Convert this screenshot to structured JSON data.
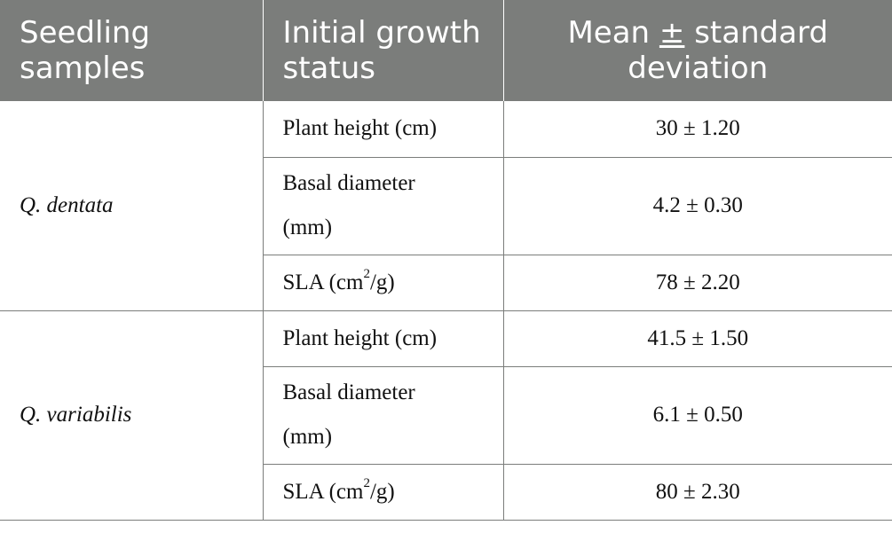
{
  "table": {
    "headers": {
      "col1_line1": "Seedling",
      "col1_line2": "samples",
      "col2_line1": "Initial growth",
      "col2_line2": "status",
      "col3_line1_a": "Mean ",
      "col3_line1_pm": "±",
      "col3_line1_b": " standard",
      "col3_line2": "deviation"
    },
    "groups": [
      {
        "species": "Q. dentata",
        "rows": [
          {
            "param": "Plant height (cm)",
            "value": "30 ± 1.20"
          },
          {
            "param_line1": "Basal diameter",
            "param_line2": "(mm)",
            "value": "4.2 ± 0.30"
          },
          {
            "param_a": "SLA (cm",
            "param_sup": "2",
            "param_b": "/g)",
            "value": "78 ± 2.20"
          }
        ]
      },
      {
        "species": "Q. variabilis",
        "rows": [
          {
            "param": "Plant height (cm)",
            "value": "41.5 ± 1.50"
          },
          {
            "param_line1": "Basal diameter",
            "param_line2": "(mm)",
            "value": "6.1 ± 0.50"
          },
          {
            "param_a": "SLA (cm",
            "param_sup": "2",
            "param_b": "/g)",
            "value": "80 ± 2.30"
          }
        ]
      }
    ]
  }
}
